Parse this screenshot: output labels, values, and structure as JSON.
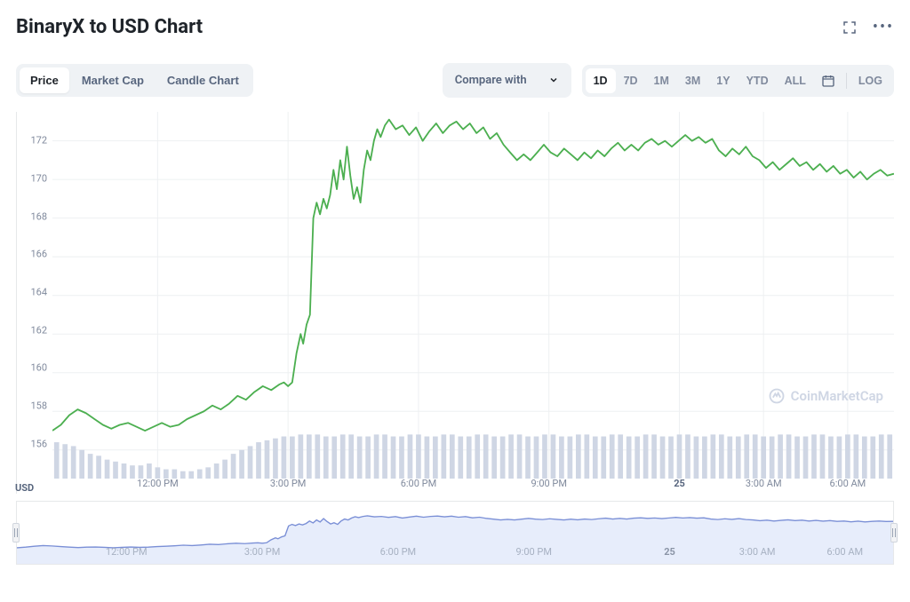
{
  "title": "BinaryX to USD Chart",
  "watermark": "CoinMarketCap",
  "view_tabs": {
    "items": [
      "Price",
      "Market Cap",
      "Candle Chart"
    ],
    "active_index": 0
  },
  "compare": {
    "label": "Compare with"
  },
  "ranges": {
    "items": [
      "1D",
      "7D",
      "1M",
      "3M",
      "1Y",
      "YTD",
      "ALL"
    ],
    "active_index": 0,
    "log_label": "LOG"
  },
  "y_axis": {
    "label": "USD",
    "min": 154.5,
    "max": 173.5,
    "ticks": [
      156,
      158,
      160,
      162,
      164,
      166,
      168,
      170,
      172
    ]
  },
  "x_axis": {
    "labels": [
      {
        "text": "12:00 PM",
        "t": 0.125,
        "bold": false
      },
      {
        "text": "3:00 PM",
        "t": 0.28,
        "bold": false
      },
      {
        "text": "6:00 PM",
        "t": 0.435,
        "bold": false
      },
      {
        "text": "9:00 PM",
        "t": 0.59,
        "bold": false
      },
      {
        "text": "25",
        "t": 0.745,
        "bold": true
      },
      {
        "text": "3:00 AM",
        "t": 0.845,
        "bold": false
      },
      {
        "text": "6:00 AM",
        "t": 0.945,
        "bold": false
      }
    ]
  },
  "chart": {
    "type": "line",
    "line_color": "#4caf50",
    "line_width": 1.8,
    "background": "#ffffff",
    "grid_color": "#eef0f2",
    "series": [
      [
        0.0,
        157.0
      ],
      [
        0.01,
        157.3
      ],
      [
        0.02,
        157.8
      ],
      [
        0.03,
        158.1
      ],
      [
        0.04,
        157.9
      ],
      [
        0.05,
        157.6
      ],
      [
        0.06,
        157.3
      ],
      [
        0.07,
        157.1
      ],
      [
        0.08,
        157.3
      ],
      [
        0.09,
        157.4
      ],
      [
        0.1,
        157.2
      ],
      [
        0.11,
        157.0
      ],
      [
        0.12,
        157.2
      ],
      [
        0.13,
        157.4
      ],
      [
        0.14,
        157.2
      ],
      [
        0.15,
        157.3
      ],
      [
        0.16,
        157.6
      ],
      [
        0.17,
        157.8
      ],
      [
        0.18,
        158.0
      ],
      [
        0.19,
        158.3
      ],
      [
        0.2,
        158.1
      ],
      [
        0.21,
        158.4
      ],
      [
        0.22,
        158.8
      ],
      [
        0.23,
        158.6
      ],
      [
        0.24,
        159.0
      ],
      [
        0.25,
        159.3
      ],
      [
        0.26,
        159.1
      ],
      [
        0.27,
        159.4
      ],
      [
        0.275,
        159.5
      ],
      [
        0.28,
        159.3
      ],
      [
        0.285,
        159.5
      ],
      [
        0.29,
        161.0
      ],
      [
        0.295,
        162.0
      ],
      [
        0.298,
        161.5
      ],
      [
        0.302,
        162.5
      ],
      [
        0.306,
        163.0
      ],
      [
        0.31,
        168.0
      ],
      [
        0.314,
        168.8
      ],
      [
        0.318,
        168.2
      ],
      [
        0.322,
        169.0
      ],
      [
        0.326,
        168.5
      ],
      [
        0.33,
        169.2
      ],
      [
        0.334,
        170.5
      ],
      [
        0.338,
        169.5
      ],
      [
        0.342,
        171.0
      ],
      [
        0.346,
        170.0
      ],
      [
        0.35,
        171.7
      ],
      [
        0.354,
        170.2
      ],
      [
        0.358,
        169.0
      ],
      [
        0.362,
        169.6
      ],
      [
        0.366,
        168.8
      ],
      [
        0.37,
        170.5
      ],
      [
        0.374,
        171.5
      ],
      [
        0.378,
        171.0
      ],
      [
        0.382,
        172.0
      ],
      [
        0.386,
        172.6
      ],
      [
        0.39,
        172.2
      ],
      [
        0.395,
        172.8
      ],
      [
        0.4,
        173.1
      ],
      [
        0.408,
        172.6
      ],
      [
        0.416,
        172.8
      ],
      [
        0.424,
        172.3
      ],
      [
        0.432,
        172.7
      ],
      [
        0.44,
        172.0
      ],
      [
        0.448,
        172.5
      ],
      [
        0.456,
        172.9
      ],
      [
        0.464,
        172.4
      ],
      [
        0.472,
        172.8
      ],
      [
        0.48,
        173.0
      ],
      [
        0.488,
        172.6
      ],
      [
        0.496,
        172.9
      ],
      [
        0.504,
        172.4
      ],
      [
        0.512,
        172.7
      ],
      [
        0.52,
        172.1
      ],
      [
        0.528,
        172.4
      ],
      [
        0.536,
        171.8
      ],
      [
        0.544,
        171.4
      ],
      [
        0.552,
        171.0
      ],
      [
        0.56,
        171.3
      ],
      [
        0.568,
        171.0
      ],
      [
        0.576,
        171.4
      ],
      [
        0.584,
        171.8
      ],
      [
        0.592,
        171.4
      ],
      [
        0.6,
        171.2
      ],
      [
        0.608,
        171.6
      ],
      [
        0.616,
        171.3
      ],
      [
        0.624,
        171.0
      ],
      [
        0.632,
        171.4
      ],
      [
        0.64,
        171.1
      ],
      [
        0.648,
        171.5
      ],
      [
        0.656,
        171.2
      ],
      [
        0.664,
        171.6
      ],
      [
        0.672,
        171.9
      ],
      [
        0.68,
        171.5
      ],
      [
        0.688,
        171.8
      ],
      [
        0.696,
        171.5
      ],
      [
        0.704,
        171.9
      ],
      [
        0.712,
        172.1
      ],
      [
        0.72,
        171.8
      ],
      [
        0.728,
        172.0
      ],
      [
        0.736,
        171.7
      ],
      [
        0.744,
        172.0
      ],
      [
        0.752,
        172.3
      ],
      [
        0.76,
        172.0
      ],
      [
        0.768,
        172.2
      ],
      [
        0.776,
        171.9
      ],
      [
        0.784,
        172.1
      ],
      [
        0.792,
        171.5
      ],
      [
        0.8,
        171.2
      ],
      [
        0.808,
        171.6
      ],
      [
        0.816,
        171.3
      ],
      [
        0.824,
        171.7
      ],
      [
        0.832,
        171.2
      ],
      [
        0.84,
        171.0
      ],
      [
        0.848,
        170.6
      ],
      [
        0.856,
        170.9
      ],
      [
        0.864,
        170.5
      ],
      [
        0.872,
        170.8
      ],
      [
        0.88,
        171.1
      ],
      [
        0.888,
        170.7
      ],
      [
        0.896,
        170.9
      ],
      [
        0.904,
        170.5
      ],
      [
        0.912,
        170.8
      ],
      [
        0.92,
        170.4
      ],
      [
        0.928,
        170.7
      ],
      [
        0.936,
        170.3
      ],
      [
        0.944,
        170.5
      ],
      [
        0.952,
        170.1
      ],
      [
        0.96,
        170.4
      ],
      [
        0.968,
        170.0
      ],
      [
        0.976,
        170.3
      ],
      [
        0.984,
        170.5
      ],
      [
        0.992,
        170.2
      ],
      [
        1.0,
        170.3
      ]
    ]
  },
  "volume": {
    "bar_color": "#cfd6e4",
    "baseline": 154.5,
    "max_height_value": 157.0,
    "series": [
      156.4,
      156.3,
      156.2,
      156.0,
      155.8,
      155.7,
      155.5,
      155.4,
      155.3,
      155.2,
      155.2,
      155.3,
      155.1,
      155.0,
      155.0,
      154.9,
      154.9,
      155.0,
      155.1,
      155.3,
      155.5,
      155.8,
      156.0,
      156.2,
      156.4,
      156.5,
      156.6,
      156.7,
      156.7,
      156.8,
      156.8,
      156.8,
      156.7,
      156.7,
      156.8,
      156.8,
      156.7,
      156.7,
      156.8,
      156.8,
      156.7,
      156.7,
      156.8,
      156.8,
      156.7,
      156.7,
      156.8,
      156.8,
      156.7,
      156.7,
      156.8,
      156.8,
      156.7,
      156.7,
      156.8,
      156.8,
      156.7,
      156.7,
      156.8,
      156.8,
      156.7,
      156.7,
      156.8,
      156.8,
      156.7,
      156.7,
      156.8,
      156.8,
      156.7,
      156.7,
      156.8,
      156.8,
      156.7,
      156.7,
      156.8,
      156.8,
      156.7,
      156.7,
      156.8,
      156.8,
      156.7,
      156.7,
      156.8,
      156.8,
      156.7,
      156.7,
      156.8,
      156.8,
      156.7,
      156.7,
      156.8,
      156.8,
      156.7,
      156.7,
      156.8,
      156.8,
      156.7,
      156.7,
      156.8,
      156.8
    ]
  },
  "navigator": {
    "fill_color": "#e7edfb",
    "line_color": "#7a8fd6",
    "line_width": 1.4,
    "series_ref": "chart.series"
  }
}
